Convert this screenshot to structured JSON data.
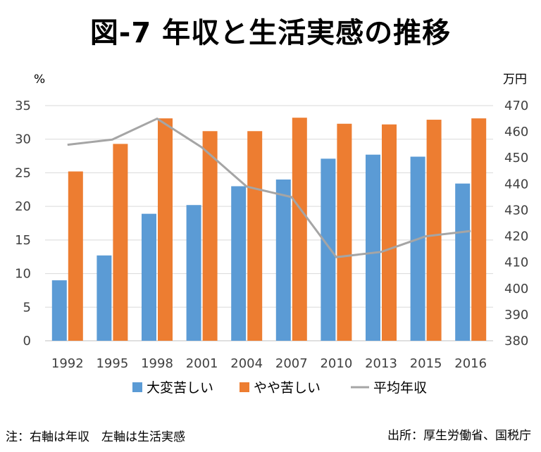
{
  "title": "図-7 年収と生活実感の推移",
  "note": "注：右軸は年収　左軸は生活実感",
  "source": "出所：厚生労働省、国税庁",
  "chart_data": {
    "type": "bar",
    "categories": [
      "1992",
      "1995",
      "1998",
      "2001",
      "2004",
      "2007",
      "2010",
      "2013",
      "2015",
      "2016"
    ],
    "y_left_unit": "%",
    "y_right_unit": "万円",
    "ylim_left": [
      0,
      35
    ],
    "yticks_left": [
      0,
      5,
      10,
      15,
      20,
      25,
      30,
      35
    ],
    "ylim_right": [
      380,
      470
    ],
    "yticks_right": [
      380,
      390,
      400,
      410,
      420,
      430,
      440,
      450,
      460,
      470
    ],
    "grid": true,
    "legend_position": "bottom",
    "series": [
      {
        "name": "大変苦しい",
        "type": "bar",
        "axis": "left",
        "color": "#5B9BD5",
        "values": [
          9.0,
          12.7,
          18.9,
          20.2,
          23.0,
          24.0,
          27.1,
          27.7,
          27.4,
          23.4
        ]
      },
      {
        "name": "やや苦しい",
        "type": "bar",
        "axis": "left",
        "color": "#ED7D31",
        "values": [
          25.2,
          29.3,
          33.1,
          31.2,
          31.2,
          33.2,
          32.3,
          32.2,
          32.9,
          33.1
        ]
      },
      {
        "name": "平均年収",
        "type": "line",
        "axis": "right",
        "color": "#A5A5A5",
        "values": [
          455,
          457,
          465,
          454,
          439,
          435,
          412,
          414,
          420,
          422
        ]
      }
    ]
  }
}
